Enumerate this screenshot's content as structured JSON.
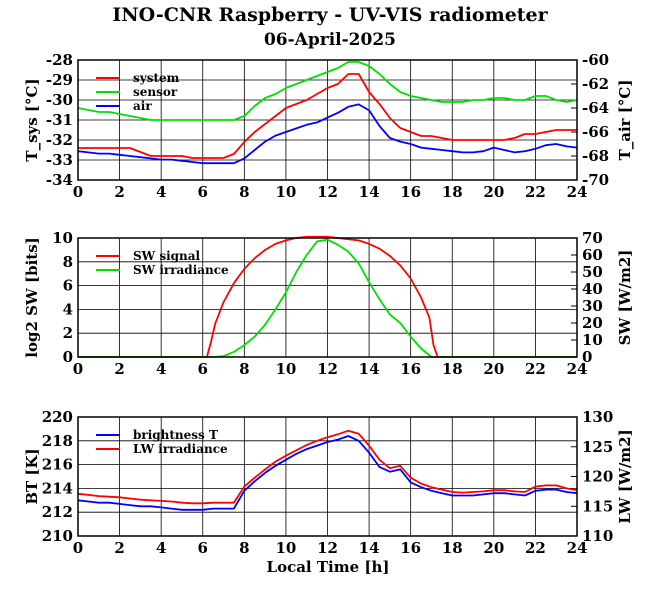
{
  "title": "INO-CNR Raspberry - UV-VIS radiometer",
  "subtitle": "06-April-2025",
  "colors": {
    "red": "#ff0000",
    "green": "#00e000",
    "blue": "#0000ff",
    "axis": "#000000",
    "grid": "#000000"
  },
  "chart_data": [
    {
      "type": "line",
      "ylabel_left": "T_sys [°C]",
      "ylabel_right": "T_air [°C]",
      "xlabel": "",
      "xlim": [
        0,
        24
      ],
      "ylim": [
        -34,
        -28
      ],
      "ylim_right": [
        -70,
        -60
      ],
      "x_ticks": [
        "0",
        "2",
        "4",
        "6",
        "8",
        "10",
        "12",
        "14",
        "16",
        "18",
        "20",
        "22",
        "24"
      ],
      "y_ticks": [
        "-34",
        "-33",
        "-32",
        "-31",
        "-30",
        "-29",
        "-28"
      ],
      "y_ticks_right": [
        "-70",
        "-68",
        "-66",
        "-64",
        "-62",
        "-60"
      ],
      "grid": true,
      "legend": "top-left",
      "series": [
        {
          "name": "system",
          "color": "red",
          "axis": "left",
          "x": [
            0,
            0.5,
            1,
            1.5,
            2,
            2.5,
            3,
            3.5,
            4,
            4.5,
            5,
            5.5,
            6,
            6.5,
            7,
            7.5,
            8,
            8.5,
            9,
            9.5,
            10,
            10.5,
            11,
            11.5,
            12,
            12.5,
            13,
            13.5,
            14,
            14.5,
            15,
            15.5,
            16,
            16.5,
            17,
            17.5,
            18,
            18.5,
            19,
            19.5,
            20,
            20.5,
            21,
            21.5,
            22,
            22.5,
            23,
            23.5,
            24
          ],
          "values": [
            -32.4,
            -32.4,
            -32.4,
            -32.4,
            -32.4,
            -32.4,
            -32.6,
            -32.8,
            -32.8,
            -32.8,
            -32.8,
            -32.9,
            -32.9,
            -32.9,
            -32.9,
            -32.7,
            -32.1,
            -31.6,
            -31.2,
            -30.8,
            -30.4,
            -30.2,
            -30.0,
            -29.7,
            -29.4,
            -29.2,
            -28.7,
            -28.7,
            -29.6,
            -30.2,
            -30.9,
            -31.4,
            -31.6,
            -31.8,
            -31.8,
            -31.9,
            -32.0,
            -32.0,
            -32.0,
            -32.0,
            -32.0,
            -32.0,
            -31.9,
            -31.7,
            -31.7,
            -31.6,
            -31.5,
            -31.5,
            -31.5
          ]
        },
        {
          "name": "sensor",
          "color": "green",
          "axis": "left",
          "x": [
            0,
            0.5,
            1,
            1.5,
            2,
            2.5,
            3,
            3.5,
            4,
            4.5,
            5,
            5.5,
            6,
            6.5,
            7,
            7.5,
            8,
            8.5,
            9,
            9.5,
            10,
            10.5,
            11,
            11.5,
            12,
            12.5,
            13,
            13.5,
            14,
            14.5,
            15,
            15.5,
            16,
            16.5,
            17,
            17.5,
            18,
            18.5,
            19,
            19.5,
            20,
            20.5,
            21,
            21.5,
            22,
            22.5,
            23,
            23.5,
            24
          ],
          "values": [
            -30.4,
            -30.5,
            -30.6,
            -30.6,
            -30.7,
            -30.8,
            -30.9,
            -31.0,
            -31.0,
            -31.0,
            -31.0,
            -31.0,
            -31.0,
            -31.0,
            -31.0,
            -31.0,
            -30.8,
            -30.3,
            -29.9,
            -29.7,
            -29.4,
            -29.2,
            -29.0,
            -28.8,
            -28.6,
            -28.4,
            -28.1,
            -28.1,
            -28.3,
            -28.7,
            -29.2,
            -29.6,
            -29.8,
            -29.9,
            -30.0,
            -30.1,
            -30.1,
            -30.1,
            -30.0,
            -30.0,
            -29.9,
            -29.9,
            -30.0,
            -30.0,
            -29.8,
            -29.8,
            -30.0,
            -30.1,
            -30.0
          ]
        },
        {
          "name": "air",
          "color": "blue",
          "axis": "right",
          "x": [
            0,
            0.5,
            1,
            1.5,
            2,
            2.5,
            3,
            3.5,
            4,
            4.5,
            5,
            5.5,
            6,
            6.5,
            7,
            7.5,
            8,
            8.5,
            9,
            9.5,
            10,
            10.5,
            11,
            11.5,
            12,
            12.5,
            13,
            13.5,
            14,
            14.5,
            15,
            15.5,
            16,
            16.5,
            17,
            17.5,
            18,
            18.5,
            19,
            19.5,
            20,
            20.5,
            21,
            21.5,
            22,
            22.5,
            23,
            23.5,
            24
          ],
          "values": [
            -67.6,
            -67.7,
            -67.8,
            -67.8,
            -67.9,
            -68.0,
            -68.1,
            -68.2,
            -68.3,
            -68.3,
            -68.4,
            -68.5,
            -68.6,
            -68.6,
            -68.6,
            -68.6,
            -68.2,
            -67.5,
            -66.8,
            -66.3,
            -66.0,
            -65.7,
            -65.4,
            -65.2,
            -64.8,
            -64.4,
            -63.9,
            -63.7,
            -64.2,
            -65.5,
            -66.5,
            -66.8,
            -67.0,
            -67.3,
            -67.4,
            -67.5,
            -67.6,
            -67.7,
            -67.7,
            -67.6,
            -67.3,
            -67.5,
            -67.7,
            -67.6,
            -67.4,
            -67.1,
            -67.0,
            -67.2,
            -67.3
          ]
        }
      ]
    },
    {
      "type": "line",
      "ylabel_left": "log2 SW [bits]",
      "ylabel_right": "SW [W/m2]",
      "xlim": [
        0,
        24
      ],
      "ylim": [
        0,
        10
      ],
      "ylim_right": [
        0,
        70
      ],
      "x_ticks": [
        "0",
        "2",
        "4",
        "6",
        "8",
        "10",
        "12",
        "14",
        "16",
        "18",
        "20",
        "22",
        "24"
      ],
      "y_ticks": [
        "0",
        "2",
        "4",
        "6",
        "8",
        "10"
      ],
      "y_ticks_right": [
        "0",
        "10",
        "20",
        "30",
        "40",
        "50",
        "60",
        "70"
      ],
      "grid": true,
      "legend": "top-left",
      "series": [
        {
          "name": "SW signal",
          "color": "red",
          "axis": "left",
          "x": [
            0,
            6.2,
            6.4,
            6.6,
            7,
            7.5,
            8,
            8.5,
            9,
            9.5,
            10,
            10.5,
            11,
            11.5,
            12,
            12.5,
            13,
            13.5,
            14,
            14.5,
            15,
            15.5,
            16,
            16.5,
            16.9,
            17.1,
            17.3,
            24
          ],
          "values": [
            0,
            0,
            1.3,
            2.8,
            4.6,
            6.2,
            7.4,
            8.3,
            9.0,
            9.5,
            9.8,
            10.0,
            10.1,
            10.1,
            10.1,
            10.0,
            9.9,
            9.8,
            9.5,
            9.1,
            8.5,
            7.7,
            6.6,
            5.0,
            3.3,
            1.0,
            0,
            0
          ]
        },
        {
          "name": "SW irradiance",
          "color": "green",
          "axis": "right",
          "x": [
            0,
            6.5,
            7,
            7.5,
            8,
            8.5,
            9,
            9.5,
            10,
            10.5,
            11,
            11.5,
            12,
            12.5,
            13,
            13.5,
            14,
            14.5,
            15,
            15.5,
            16,
            16.5,
            17,
            24
          ],
          "values": [
            0,
            0,
            0.5,
            3,
            7,
            12,
            19,
            28,
            38,
            50,
            60,
            68,
            69,
            66,
            62,
            55,
            44,
            34,
            25,
            20,
            12,
            5,
            0,
            0
          ]
        }
      ]
    },
    {
      "type": "line",
      "ylabel_left": "BT [K]",
      "ylabel_right": "LW [W/m2]",
      "xlabel": "Local Time [h]",
      "xlim": [
        0,
        24
      ],
      "ylim": [
        210,
        220
      ],
      "ylim_right": [
        110,
        130
      ],
      "x_ticks": [
        "0",
        "2",
        "4",
        "6",
        "8",
        "10",
        "12",
        "14",
        "16",
        "18",
        "20",
        "22",
        "24"
      ],
      "y_ticks": [
        "210",
        "212",
        "214",
        "216",
        "218",
        "220"
      ],
      "y_ticks_right": [
        "110",
        "115",
        "120",
        "125",
        "130"
      ],
      "grid": true,
      "legend": "top-left",
      "series": [
        {
          "name": "brightness T",
          "color": "blue",
          "axis": "left",
          "x": [
            0,
            0.5,
            1,
            1.5,
            2,
            2.5,
            3,
            3.5,
            4,
            4.5,
            5,
            5.5,
            6,
            6.5,
            7,
            7.5,
            8,
            8.5,
            9,
            9.5,
            10,
            10.5,
            11,
            11.5,
            12,
            12.5,
            13,
            13.5,
            14,
            14.5,
            15,
            15.5,
            16,
            16.5,
            17,
            17.5,
            18,
            18.5,
            19,
            19.5,
            20,
            20.5,
            21,
            21.5,
            22,
            22.5,
            23,
            23.5,
            24
          ],
          "values": [
            213.0,
            212.9,
            212.8,
            212.8,
            212.7,
            212.6,
            212.5,
            212.5,
            212.4,
            212.3,
            212.2,
            212.2,
            212.2,
            212.3,
            212.3,
            212.3,
            213.8,
            214.6,
            215.3,
            215.9,
            216.4,
            216.9,
            217.3,
            217.6,
            217.9,
            218.1,
            218.4,
            218.0,
            217.0,
            215.8,
            215.4,
            215.6,
            214.5,
            214.1,
            213.8,
            213.6,
            213.4,
            213.4,
            213.4,
            213.5,
            213.6,
            213.6,
            213.5,
            213.4,
            213.8,
            213.9,
            213.9,
            213.7,
            213.6
          ]
        },
        {
          "name": "LW irradiance",
          "color": "red",
          "axis": "right",
          "x": [
            0,
            0.5,
            1,
            1.5,
            2,
            2.5,
            3,
            3.5,
            4,
            4.5,
            5,
            5.5,
            6,
            6.5,
            7,
            7.5,
            8,
            8.5,
            9,
            9.5,
            10,
            10.5,
            11,
            11.5,
            12,
            12.5,
            13,
            13.5,
            14,
            14.5,
            15,
            15.5,
            16,
            16.5,
            17,
            17.5,
            18,
            18.5,
            19,
            19.5,
            20,
            20.5,
            21,
            21.5,
            22,
            22.5,
            23,
            23.5,
            24
          ],
          "values": [
            117.1,
            116.9,
            116.7,
            116.6,
            116.5,
            116.3,
            116.1,
            116.0,
            115.9,
            115.8,
            115.6,
            115.5,
            115.5,
            115.6,
            115.6,
            115.6,
            118.3,
            119.8,
            121.2,
            122.5,
            123.5,
            124.4,
            125.3,
            126.0,
            126.6,
            127.1,
            127.7,
            127.2,
            125.2,
            122.8,
            121.4,
            121.8,
            119.8,
            118.8,
            118.2,
            117.8,
            117.4,
            117.3,
            117.4,
            117.5,
            117.7,
            117.7,
            117.5,
            117.4,
            118.3,
            118.5,
            118.5,
            118.0,
            117.7
          ]
        }
      ]
    }
  ]
}
